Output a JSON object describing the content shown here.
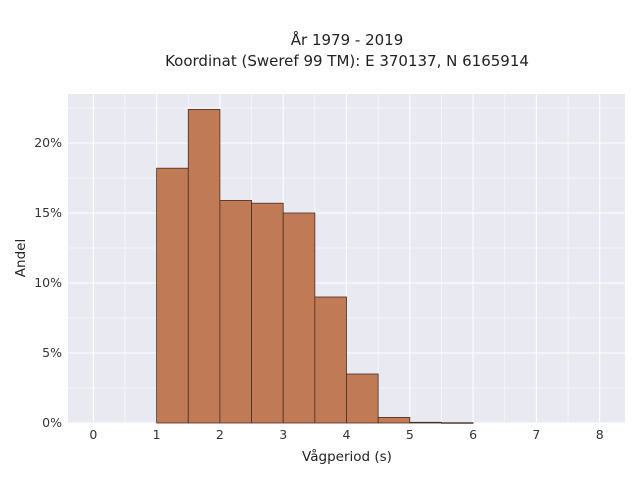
{
  "chart_data": {
    "type": "bar",
    "title": "År 1979 - 2019",
    "subtitle": "Koordinat (Sweref 99 TM): E 370137, N 6165914",
    "xlabel": "Vågperiod (s)",
    "ylabel": "Andel",
    "xlim": [
      -0.4,
      8.4
    ],
    "ylim": [
      0,
      23.5
    ],
    "x_ticks": [
      0,
      1,
      2,
      3,
      4,
      5,
      6,
      7,
      8
    ],
    "y_ticks": [
      0,
      5,
      10,
      15,
      20
    ],
    "y_tick_labels": [
      "0%",
      "5%",
      "10%",
      "15%",
      "20%"
    ],
    "bins": [
      {
        "start": 1.0,
        "end": 1.5,
        "value": 18.2
      },
      {
        "start": 1.5,
        "end": 2.0,
        "value": 22.4
      },
      {
        "start": 2.0,
        "end": 2.5,
        "value": 15.9
      },
      {
        "start": 2.5,
        "end": 3.0,
        "value": 15.7
      },
      {
        "start": 3.0,
        "end": 3.5,
        "value": 15.0
      },
      {
        "start": 3.5,
        "end": 4.0,
        "value": 9.0
      },
      {
        "start": 4.0,
        "end": 4.5,
        "value": 3.5
      },
      {
        "start": 4.5,
        "end": 5.0,
        "value": 0.4
      },
      {
        "start": 5.0,
        "end": 5.5,
        "value": 0.05
      },
      {
        "start": 5.5,
        "end": 6.0,
        "value": 0.02
      }
    ],
    "grid": true,
    "legend": "none",
    "colors": {
      "bar_fill": "#c07b56",
      "bar_edge": "#4a2e20",
      "plot_background": "#e9e9f2",
      "grid": "#ffffff"
    }
  }
}
